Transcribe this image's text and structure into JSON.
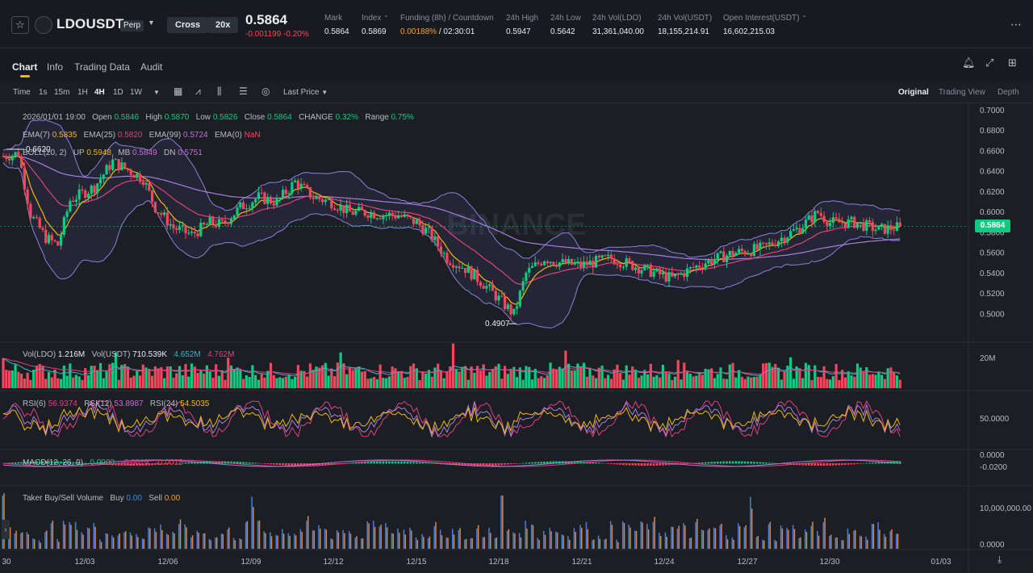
{
  "header": {
    "symbol": "LDOUSDT",
    "perp_tag": "Perp",
    "margin_mode": "Cross",
    "leverage": "20x",
    "last_price": "0.5864",
    "price_change": "-0.001199 -0.20%",
    "stats": [
      {
        "label": "Mark",
        "value": "0.5864"
      },
      {
        "label": "Index",
        "value": "0.5869"
      },
      {
        "label": "Funding (8h) / Countdown",
        "value_a": "0.00188%",
        "value_b": " / 02:30:01"
      },
      {
        "label": "24h High",
        "value": "0.5947"
      },
      {
        "label": "24h Low",
        "value": "0.5642"
      },
      {
        "label": "24h Vol(LDO)",
        "value": "31,361,040.00"
      },
      {
        "label": "24h Vol(USDT)",
        "value": "18,155,214.91"
      },
      {
        "label": "Open Interest(USDT)",
        "value": "16,602,215.03"
      }
    ]
  },
  "tabs": [
    "Chart",
    "Info",
    "Trading Data",
    "Audit"
  ],
  "toolbar": {
    "intervals": [
      "Time",
      "1s",
      "15m",
      "1H",
      "4H",
      "1D",
      "1W"
    ],
    "active_interval": "4H",
    "price_type": "Last Price",
    "views": [
      "Original",
      "Trading View",
      "Depth"
    ],
    "active_view": "Original"
  },
  "ohlc": {
    "date": "2026/01/01 19:00",
    "open_label": "Open",
    "open": "0.5846",
    "high_label": "High",
    "high": "0.5870",
    "low_label": "Low",
    "low": "0.5826",
    "close_label": "Close",
    "close": "0.5864",
    "change_label": "CHANGE",
    "change": "0.32%",
    "range_label": "Range",
    "range": "0.75%"
  },
  "ema": {
    "ema7_label": "EMA(7)",
    "ema7": "0.5835",
    "ema25_label": "EMA(25)",
    "ema25": "0.5820",
    "ema99_label": "EMA(99)",
    "ema99": "0.5724",
    "ema0_label": "EMA(0)",
    "ema0": "NaN"
  },
  "boll": {
    "label": "BOLL(20, 2)",
    "up_label": "UP",
    "up": "0.5948",
    "mb_label": "MB",
    "mb": "0.5849",
    "dn_label": "DN",
    "dn": "0.5751"
  },
  "vol": {
    "label": "Vol(LDO)",
    "value": "1.216M",
    "usdt_label": "Vol(USDT)",
    "usdt": "710.539K",
    "ma1": "4.652M",
    "ma2": "4.762M",
    "axis": "20M"
  },
  "rsi": {
    "rsi6_label": "RSI(6)",
    "rsi6": "56.9374",
    "rsi12_label": "RSI(12)",
    "rsi12": "53.8987",
    "rsi24_label": "RSI(24)",
    "rsi24": "54.5035",
    "axis": "50.0000"
  },
  "macd": {
    "label": "MACD(12, 26, 9)",
    "v1": "0.0000",
    "v2": "-0.0019",
    "v3": "-0.0012",
    "axis_top": "0.0000",
    "axis_bot": "-0.0200"
  },
  "taker": {
    "label": "Taker Buy/Sell Volume",
    "buy_label": "Buy",
    "buy": "0.00",
    "sell_label": "Sell",
    "sell": "0.00",
    "axis_top": "10,000,000.00",
    "axis_bot": "0.0000"
  },
  "price_axis": [
    "0.7000",
    "0.6800",
    "0.6600",
    "0.6400",
    "0.6200",
    "0.6000",
    "0.5800",
    "0.5600",
    "0.5400",
    "0.5200",
    "0.5000"
  ],
  "current_price_tag": "0.5864",
  "max_marker": "0.6620",
  "min_marker": "0.4907",
  "watermark": "BINANCE",
  "date_axis": [
    "30",
    "12/03",
    "12/06",
    "12/09",
    "12/12",
    "12/15",
    "12/18",
    "12/21",
    "12/24",
    "12/27",
    "12/30",
    "01/03"
  ],
  "colors": {
    "up": "#0ecb81",
    "down": "#f6465d",
    "accent": "#f0b90b"
  },
  "chart_data": {
    "type": "candlestick",
    "interval": "4H",
    "x": [
      "12/03",
      "12/06",
      "12/09",
      "12/12",
      "12/15",
      "12/18",
      "12/21",
      "12/24",
      "12/27",
      "12/30"
    ],
    "close_trend": [
      0.575,
      0.585,
      0.605,
      0.6,
      0.59,
      0.505,
      0.555,
      0.535,
      0.57,
      0.586
    ],
    "ylim": [
      0.49,
      0.7
    ],
    "last_close": 0.5864
  }
}
